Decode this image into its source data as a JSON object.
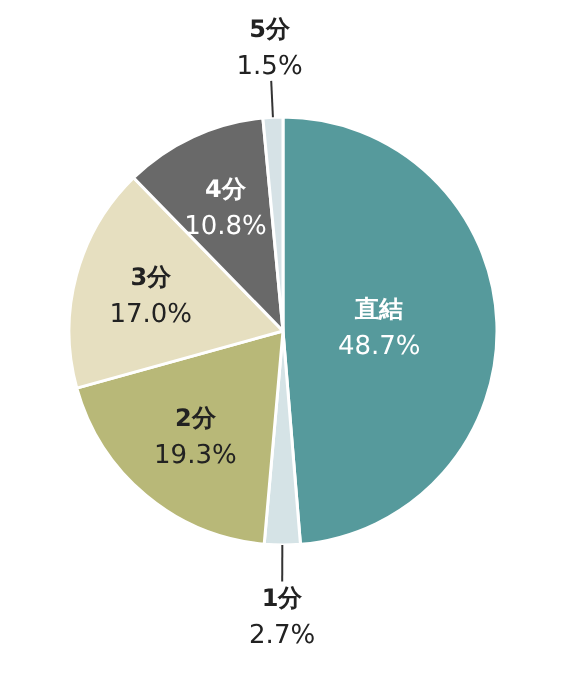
{
  "chart_data": {
    "type": "pie",
    "categories": [
      "直結",
      "1分",
      "2分",
      "3分",
      "4分",
      "5分"
    ],
    "values": [
      48.7,
      2.7,
      19.3,
      17.0,
      10.8,
      1.5
    ],
    "value_labels": [
      "48.7%",
      "2.7%",
      "19.3%",
      "17.0%",
      "10.8%",
      "1.5%"
    ],
    "colors": [
      "#569a9c",
      "#d5e3e6",
      "#b8b878",
      "#e6dfc0",
      "#696969",
      "#d6e2e6"
    ]
  }
}
